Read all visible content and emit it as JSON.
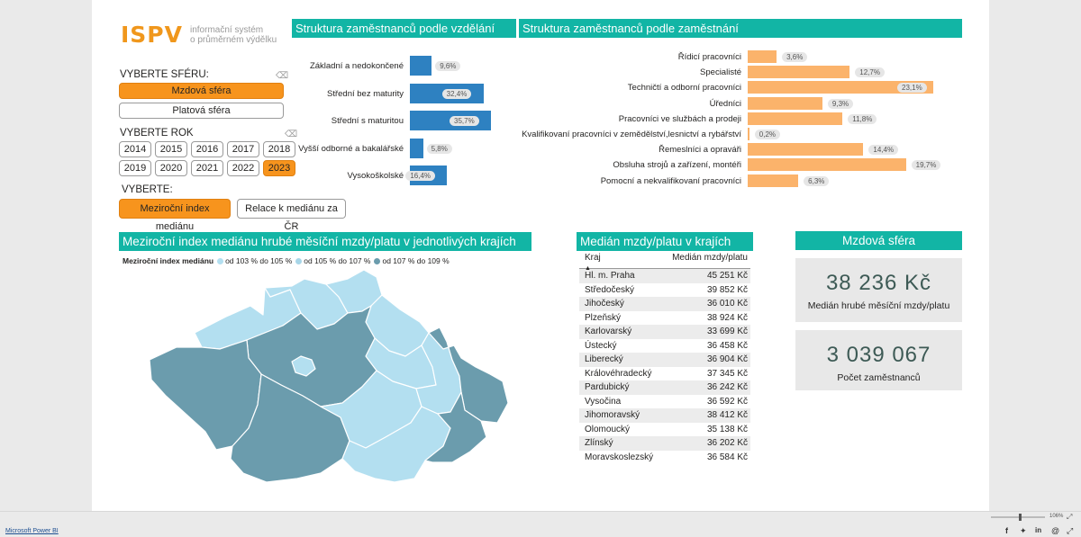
{
  "logo": {
    "mark": "ISPV",
    "line1": "informační systém",
    "line2": "o průměrném výdělku"
  },
  "sphere": {
    "label": "VYBERTE SFÉRU:",
    "options": [
      "Mzdová sféra",
      "Platová sféra"
    ]
  },
  "year": {
    "label": "VYBERTE ROK",
    "options": [
      "2014",
      "2015",
      "2016",
      "2017",
      "2018",
      "2019",
      "2020",
      "2021",
      "2022",
      "2023"
    ]
  },
  "choose": {
    "label": "VYBERTE:",
    "options": [
      "Meziroční index mediánu",
      "Relace k mediánu za ČR"
    ]
  },
  "education": {
    "title": "Struktura zaměstnanců podle vzdělání",
    "chart_data": {
      "type": "bar",
      "categories": [
        "Základní a nedokončené",
        "Střední bez maturity",
        "Střední s maturitou",
        "Vyšší odborné a bakalářské",
        "Vysokoškolské"
      ],
      "values": [
        9.6,
        32.4,
        35.7,
        5.8,
        16.4
      ],
      "labels": [
        "9,6%",
        "32,4%",
        "35,7%",
        "5,8%",
        "16,4%"
      ],
      "title": "Struktura zaměstnanců podle vzdělání"
    }
  },
  "occupation": {
    "title": "Struktura zaměstnanců podle zaměstnání",
    "chart_data": {
      "type": "bar",
      "categories": [
        "Řídicí pracovníci",
        "Specialisté",
        "Techničtí a odborní pracovníci",
        "Úředníci",
        "Pracovníci ve službách a prodeji",
        "Kvalifikovaní pracovníci v zemědělství,lesnictví a rybářství",
        "Řemeslníci a opraváři",
        "Obsluha strojů a zařízení, montéři",
        "Pomocní a nekvalifikovaní pracovníci"
      ],
      "values": [
        3.6,
        12.7,
        23.1,
        9.3,
        11.8,
        0.2,
        14.4,
        19.7,
        6.3
      ],
      "labels": [
        "3,6%",
        "12,7%",
        "23,1%",
        "9,3%",
        "11,8%",
        "0,2%",
        "14,4%",
        "19,7%",
        "6,3%"
      ],
      "title": "Struktura zaměstnanců podle zaměstnání"
    }
  },
  "map": {
    "title": "Meziroční index mediánu hrubé měsíční mzdy/platu v jednotlivých krajích",
    "legend_title": "Meziroční index mediánu",
    "legend": [
      {
        "label": "od 103 % do 105 %",
        "color": "#b3dff0"
      },
      {
        "label": "od 105 % do 107 %",
        "color": "#a8d6e8"
      },
      {
        "label": "od 107 % do 109 %",
        "color": "#6b9cad"
      }
    ]
  },
  "regions_table": {
    "title": "Medián mzdy/platu v krajích",
    "col1": "Kraj",
    "col2": "Medián mzdy/platu",
    "rows": [
      [
        "Hl. m. Praha",
        "45 251 Kč"
      ],
      [
        "Středočeský",
        "39 852 Kč"
      ],
      [
        "Jihočeský",
        "36 010 Kč"
      ],
      [
        "Plzeňský",
        "38 924 Kč"
      ],
      [
        "Karlovarský",
        "33 699 Kč"
      ],
      [
        "Ústecký",
        "36 458 Kč"
      ],
      [
        "Liberecký",
        "36 904 Kč"
      ],
      [
        "Královéhradecký",
        "37 345 Kč"
      ],
      [
        "Pardubický",
        "36 242 Kč"
      ],
      [
        "Vysočina",
        "36 592 Kč"
      ],
      [
        "Jihomoravský",
        "38 412 Kč"
      ],
      [
        "Olomoucký",
        "35 138 Kč"
      ],
      [
        "Zlínský",
        "36 202 Kč"
      ],
      [
        "Moravskoslezský",
        "36 584 Kč"
      ]
    ]
  },
  "kpi": {
    "title": "Mzdová sféra",
    "median_value": "38 236 Kč",
    "median_label": "Medián hrubé měsíční mzdy/platu",
    "count_value": "3 039 067",
    "count_label": "Počet zaměstnanců"
  },
  "footer": {
    "link": "Microsoft Power BI",
    "zoom": "106%"
  },
  "colors": {
    "teal": "#12b5a5",
    "orange": "#f7941d",
    "blue_bar": "#2e81c1",
    "orange_bar": "#fbb36b"
  }
}
